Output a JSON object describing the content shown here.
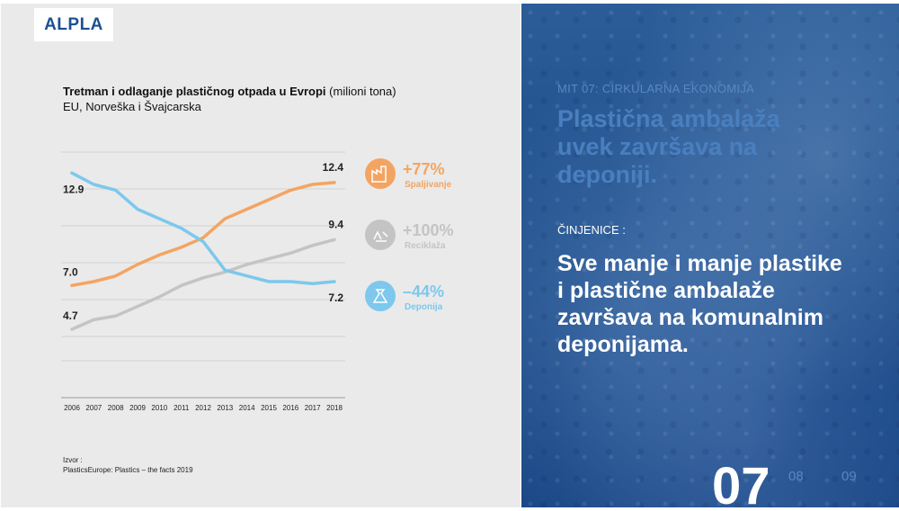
{
  "logo": {
    "text": "ALPLA"
  },
  "chart": {
    "title_bold": "Tretman i odlaganje plastičnog otpada u Evropi",
    "title_unit": "(milioni tona)",
    "subtitle": "EU, Norveška i Švajcarska"
  },
  "chart_data": {
    "type": "line",
    "x": [
      "2006",
      "2007",
      "2008",
      "2009",
      "2010",
      "2011",
      "2012",
      "2013",
      "2014",
      "2015",
      "2016",
      "2017",
      "2018"
    ],
    "ylim": [
      3,
      14
    ],
    "grid": true,
    "series": [
      {
        "name": "Spaljivanje",
        "color": "#f4a462",
        "values": [
          7.0,
          7.2,
          7.5,
          8.1,
          8.6,
          9.0,
          9.5,
          10.5,
          11.0,
          11.5,
          12.0,
          12.3,
          12.4
        ],
        "start_label": "7.0",
        "end_label": "12.4"
      },
      {
        "name": "Reciklaža",
        "color": "#c4c4c4",
        "values": [
          4.7,
          5.2,
          5.4,
          5.9,
          6.4,
          7.0,
          7.4,
          7.7,
          8.1,
          8.4,
          8.7,
          9.1,
          9.4
        ],
        "start_label": "4.7",
        "end_label": "9.4"
      },
      {
        "name": "Deponija",
        "color": "#7dc8ec",
        "values": [
          12.9,
          12.3,
          12.0,
          11.0,
          10.5,
          10.0,
          9.3,
          7.8,
          7.5,
          7.2,
          7.2,
          7.1,
          7.2
        ],
        "start_label": "12.9",
        "end_label": "7.2"
      }
    ]
  },
  "legend": [
    {
      "change": "+77%",
      "label": "Spaljivanje",
      "color": "#f4a462",
      "icon": "factory-icon"
    },
    {
      "change": "+100%",
      "label": "Reciklaža",
      "color": "#c4c4c4",
      "icon": "recycle-icon"
    },
    {
      "change": "–44%",
      "label": "Deponija",
      "color": "#7dc8ec",
      "icon": "garbage-bag-icon"
    }
  ],
  "source": {
    "label": "Izvor :",
    "text": "PlasticsEurope: Plastics – the facts 2019"
  },
  "right": {
    "myth_label": "MIT 07: CIRKULARNA EKONOMIJA",
    "myth_title": "Plastična ambalaža uvek završava na deponiji.",
    "facts_label": "ČINJENICE :",
    "facts_text": "Sve manje i manje plastike i plastične ambalaže završava na komunalnim deponijama."
  },
  "pagination": {
    "current": "07",
    "next": "08",
    "next2": "09"
  }
}
